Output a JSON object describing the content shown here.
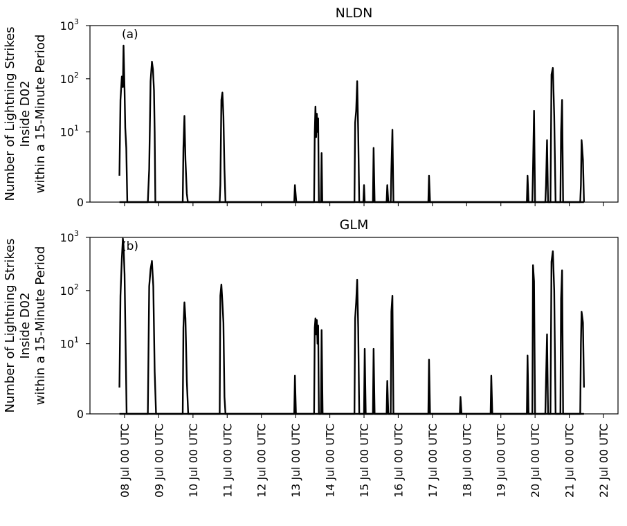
{
  "chart_data": [
    {
      "type": "line",
      "panel_label": "(a)",
      "title": "NLDN",
      "ylabel": [
        "Number of Lightning Strikes",
        "Inside D02",
        "within a 15-Minute Period"
      ],
      "yscale": "symlog",
      "ylim": [
        0,
        1000
      ],
      "yticks": [
        {
          "value": 0,
          "label": "0"
        },
        {
          "value": 10,
          "base": "10",
          "exp": "1"
        },
        {
          "value": 100,
          "base": "10",
          "exp": "2"
        },
        {
          "value": 1000,
          "base": "10",
          "exp": "3"
        }
      ],
      "xtick_labels": [
        "08 Jul 00 UTC",
        "09 Jul 00 UTC",
        "10 Jul 00 UTC",
        "11 Jul 00 UTC",
        "12 Jul 00 UTC",
        "13 Jul 00 UTC",
        "14 Jul 00 UTC",
        "15 Jul 00 UTC",
        "16 Jul 00 UTC",
        "17 Jul 00 UTC",
        "18 Jul 00 UTC",
        "19 Jul 00 UTC",
        "20 Jul 00 UTC",
        "21 Jul 00 UTC",
        "22 Jul 00 UTC"
      ],
      "x_axis": "time (days from 08 Jul 00 UTC)",
      "points": [
        [
          -0.15,
          1.5
        ],
        [
          -0.12,
          40
        ],
        [
          -0.08,
          110
        ],
        [
          -0.05,
          70
        ],
        [
          -0.03,
          420
        ],
        [
          0,
          60
        ],
        [
          0.02,
          12
        ],
        [
          0.05,
          5
        ],
        [
          0.08,
          0
        ],
        [
          0.68,
          0
        ],
        [
          0.72,
          2
        ],
        [
          0.76,
          90
        ],
        [
          0.8,
          210
        ],
        [
          0.83,
          150
        ],
        [
          0.86,
          60
        ],
        [
          0.88,
          10
        ],
        [
          0.9,
          0
        ],
        [
          1.7,
          0
        ],
        [
          1.72,
          5
        ],
        [
          1.75,
          20
        ],
        [
          1.78,
          3
        ],
        [
          1.82,
          0.5
        ],
        [
          1.85,
          0
        ],
        [
          2.78,
          0
        ],
        [
          2.8,
          1
        ],
        [
          2.83,
          40
        ],
        [
          2.86,
          55
        ],
        [
          2.89,
          20
        ],
        [
          2.92,
          2
        ],
        [
          2.95,
          0
        ],
        [
          4.96,
          0
        ],
        [
          4.98,
          1
        ],
        [
          5.02,
          0
        ],
        [
          5.54,
          0
        ],
        [
          5.56,
          10
        ],
        [
          5.58,
          30
        ],
        [
          5.6,
          8
        ],
        [
          5.62,
          22
        ],
        [
          5.64,
          10
        ],
        [
          5.66,
          18
        ],
        [
          5.68,
          0
        ],
        [
          5.74,
          0
        ],
        [
          5.76,
          4
        ],
        [
          5.78,
          0
        ],
        [
          6.72,
          0
        ],
        [
          6.74,
          15
        ],
        [
          6.77,
          25
        ],
        [
          6.8,
          90
        ],
        [
          6.83,
          10
        ],
        [
          6.86,
          0
        ],
        [
          6.98,
          0
        ],
        [
          7.0,
          1
        ],
        [
          7.02,
          0
        ],
        [
          7.26,
          0
        ],
        [
          7.28,
          5
        ],
        [
          7.31,
          0
        ],
        [
          7.66,
          0
        ],
        [
          7.68,
          1
        ],
        [
          7.71,
          0
        ],
        [
          7.78,
          0
        ],
        [
          7.8,
          2
        ],
        [
          7.83,
          11
        ],
        [
          7.86,
          0
        ],
        [
          8.88,
          0
        ],
        [
          8.9,
          1.5
        ],
        [
          8.93,
          0
        ],
        [
          11.76,
          0
        ],
        [
          11.78,
          1.5
        ],
        [
          11.81,
          0
        ],
        [
          11.92,
          0
        ],
        [
          11.94,
          2
        ],
        [
          11.97,
          25
        ],
        [
          12.0,
          0
        ],
        [
          12.3,
          0
        ],
        [
          12.32,
          1
        ],
        [
          12.35,
          7
        ],
        [
          12.38,
          0
        ],
        [
          12.45,
          0
        ],
        [
          12.48,
          120
        ],
        [
          12.52,
          160
        ],
        [
          12.56,
          20
        ],
        [
          12.6,
          0
        ],
        [
          12.74,
          0
        ],
        [
          12.76,
          10
        ],
        [
          12.79,
          40
        ],
        [
          12.82,
          0
        ],
        [
          13.32,
          0
        ],
        [
          13.34,
          1
        ],
        [
          13.36,
          7
        ],
        [
          13.4,
          3
        ],
        [
          13.43,
          0
        ]
      ]
    },
    {
      "type": "line",
      "panel_label": "(b)",
      "title": "GLM",
      "ylabel": [
        "Number of Lightning Strikes",
        "Inside D02",
        "within a 15-Minute Period"
      ],
      "yscale": "symlog",
      "ylim": [
        0,
        1000
      ],
      "yticks": [
        {
          "value": 0,
          "label": "0"
        },
        {
          "value": 10,
          "base": "10",
          "exp": "1"
        },
        {
          "value": 100,
          "base": "10",
          "exp": "2"
        },
        {
          "value": 1000,
          "base": "10",
          "exp": "3"
        }
      ],
      "xtick_labels": [
        "08 Jul 00 UTC",
        "09 Jul 00 UTC",
        "10 Jul 00 UTC",
        "11 Jul 00 UTC",
        "12 Jul 00 UTC",
        "13 Jul 00 UTC",
        "14 Jul 00 UTC",
        "15 Jul 00 UTC",
        "16 Jul 00 UTC",
        "17 Jul 00 UTC",
        "18 Jul 00 UTC",
        "19 Jul 00 UTC",
        "20 Jul 00 UTC",
        "21 Jul 00 UTC",
        "22 Jul 00 UTC"
      ],
      "x_axis": "time (days from 08 Jul 00 UTC)",
      "points": [
        [
          -0.15,
          1.5
        ],
        [
          -0.12,
          80
        ],
        [
          -0.08,
          400
        ],
        [
          -0.05,
          950
        ],
        [
          -0.03,
          700
        ],
        [
          0,
          200
        ],
        [
          0.03,
          10
        ],
        [
          0.06,
          0
        ],
        [
          0.68,
          0
        ],
        [
          0.72,
          120
        ],
        [
          0.76,
          250
        ],
        [
          0.8,
          360
        ],
        [
          0.84,
          120
        ],
        [
          0.88,
          3
        ],
        [
          0.92,
          0
        ],
        [
          1.7,
          0
        ],
        [
          1.72,
          20
        ],
        [
          1.75,
          60
        ],
        [
          1.78,
          30
        ],
        [
          1.82,
          2
        ],
        [
          1.86,
          0
        ],
        [
          2.78,
          0
        ],
        [
          2.8,
          80
        ],
        [
          2.83,
          130
        ],
        [
          2.86,
          60
        ],
        [
          2.89,
          25
        ],
        [
          2.92,
          1
        ],
        [
          2.95,
          0
        ],
        [
          4.96,
          0
        ],
        [
          4.98,
          2.5
        ],
        [
          5.01,
          0
        ],
        [
          5.54,
          0
        ],
        [
          5.56,
          20
        ],
        [
          5.58,
          30
        ],
        [
          5.6,
          15
        ],
        [
          5.62,
          28
        ],
        [
          5.64,
          10
        ],
        [
          5.66,
          22
        ],
        [
          5.68,
          0
        ],
        [
          5.74,
          0
        ],
        [
          5.76,
          18
        ],
        [
          5.79,
          0
        ],
        [
          6.72,
          0
        ],
        [
          6.74,
          30
        ],
        [
          6.77,
          60
        ],
        [
          6.8,
          160
        ],
        [
          6.83,
          20
        ],
        [
          6.86,
          0
        ],
        [
          7.0,
          0
        ],
        [
          7.02,
          8
        ],
        [
          7.05,
          0
        ],
        [
          7.26,
          0
        ],
        [
          7.28,
          8
        ],
        [
          7.31,
          0
        ],
        [
          7.66,
          0
        ],
        [
          7.68,
          2
        ],
        [
          7.71,
          0
        ],
        [
          7.78,
          0
        ],
        [
          7.8,
          40
        ],
        [
          7.83,
          80
        ],
        [
          7.86,
          0
        ],
        [
          8.88,
          0
        ],
        [
          8.9,
          5
        ],
        [
          8.93,
          0
        ],
        [
          9.8,
          0
        ],
        [
          9.82,
          1
        ],
        [
          9.85,
          0
        ],
        [
          10.7,
          0
        ],
        [
          10.72,
          2.5
        ],
        [
          10.75,
          0
        ],
        [
          11.76,
          0
        ],
        [
          11.78,
          6
        ],
        [
          11.81,
          0
        ],
        [
          11.92,
          0
        ],
        [
          11.94,
          300
        ],
        [
          11.97,
          150
        ],
        [
          12.0,
          0
        ],
        [
          12.3,
          0
        ],
        [
          12.32,
          2
        ],
        [
          12.35,
          15
        ],
        [
          12.38,
          0
        ],
        [
          12.45,
          0
        ],
        [
          12.48,
          350
        ],
        [
          12.52,
          550
        ],
        [
          12.56,
          100
        ],
        [
          12.6,
          0
        ],
        [
          12.74,
          0
        ],
        [
          12.76,
          70
        ],
        [
          12.79,
          240
        ],
        [
          12.82,
          0
        ],
        [
          13.32,
          0
        ],
        [
          13.34,
          10
        ],
        [
          13.36,
          40
        ],
        [
          13.4,
          25
        ],
        [
          13.43,
          1.5
        ]
      ]
    }
  ]
}
